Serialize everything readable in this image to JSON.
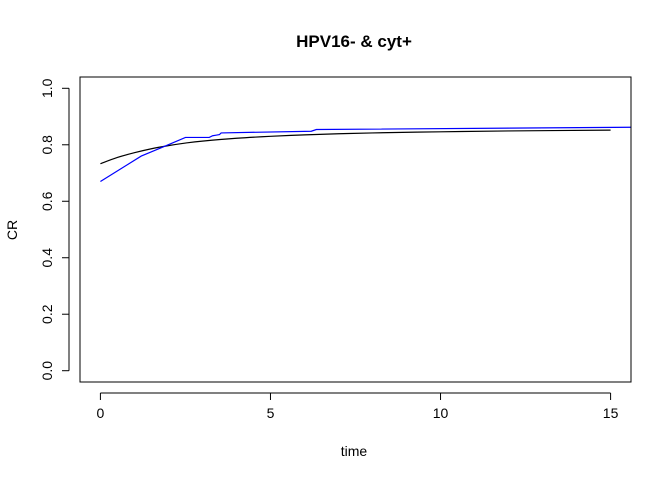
{
  "chart_data": {
    "type": "line",
    "title": "HPV16- & cyt+",
    "xlabel": "time",
    "ylabel": "CR",
    "xlim": [
      -0.6,
      15.6
    ],
    "ylim": [
      -0.04,
      1.04
    ],
    "xticks": [
      0,
      5,
      10,
      15
    ],
    "yticks": [
      0.0,
      0.2,
      0.4,
      0.6,
      0.8,
      1.0
    ],
    "xtick_labels": [
      "0",
      "5",
      "10",
      "15"
    ],
    "ytick_labels": [
      "0.0",
      "0.2",
      "0.4",
      "0.6",
      "0.8",
      "1.0"
    ],
    "grid": false,
    "legend": "none",
    "series": [
      {
        "color": "#000000",
        "style": "smooth",
        "x": [
          0,
          0.5,
          1,
          1.5,
          2,
          2.5,
          3,
          4,
          5,
          6,
          7,
          8,
          10,
          12,
          15
        ],
        "y": [
          0.733,
          0.755,
          0.772,
          0.786,
          0.797,
          0.806,
          0.813,
          0.823,
          0.83,
          0.835,
          0.839,
          0.842,
          0.846,
          0.849,
          0.852
        ]
      },
      {
        "color": "#0000ff",
        "style": "linear",
        "x": [
          0,
          1.2,
          1.8,
          2.5,
          3.2,
          3.3,
          3.4,
          3.5,
          3.55,
          6.2,
          6.35,
          15.6
        ],
        "y": [
          0.67,
          0.76,
          0.79,
          0.826,
          0.826,
          0.832,
          0.834,
          0.836,
          0.842,
          0.848,
          0.854,
          0.862
        ]
      }
    ]
  }
}
